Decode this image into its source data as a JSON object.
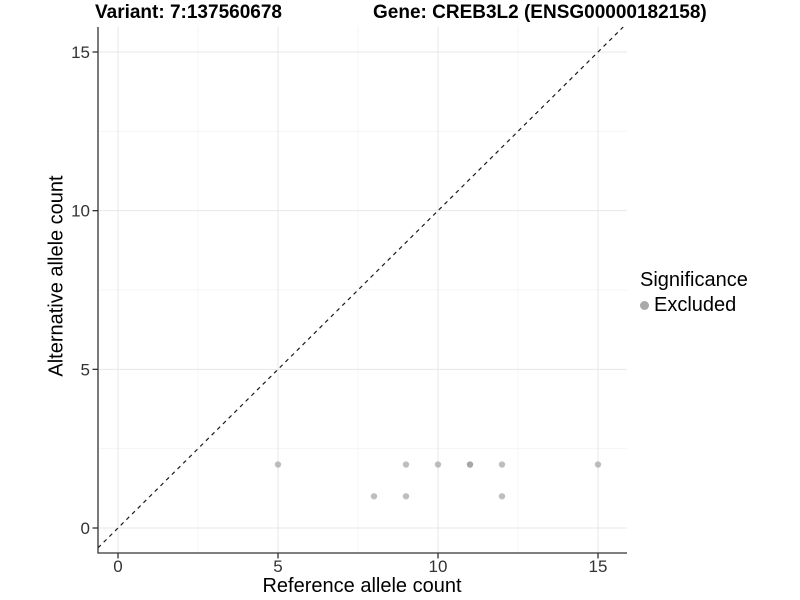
{
  "titles": {
    "variant": "Variant: 7:137560678",
    "gene": "Gene: CREB3L2 (ENSG00000182158)"
  },
  "chart_data": {
    "type": "scatter",
    "title": "Variant: 7:137560678  Gene: CREB3L2 (ENSG00000182158)",
    "xlabel": "Reference allele count",
    "ylabel": "Alternative allele count",
    "xlim": [
      -0.65,
      15.9
    ],
    "ylim": [
      -0.8,
      15.8
    ],
    "xticks": [
      0,
      5,
      10,
      15
    ],
    "yticks": [
      0,
      5,
      10,
      15
    ],
    "minor_gridlines_x": [
      2.5,
      7.5,
      12.5
    ],
    "minor_gridlines_y": [
      2.5,
      7.5,
      12.5
    ],
    "grid": "major+minor",
    "identity_line": {
      "style": "dashed",
      "slope": 1,
      "intercept": 0,
      "color": "#1a1a1a"
    },
    "legend": {
      "title": "Significance",
      "position": "right",
      "entries": [
        {
          "label": "Excluded",
          "marker_color": "#a9a9a9"
        }
      ]
    },
    "series": [
      {
        "name": "Excluded",
        "marker_color": "#9b9b9b",
        "marker_opacity": 0.65,
        "points": [
          [
            5,
            2
          ],
          [
            8,
            1
          ],
          [
            9,
            1
          ],
          [
            9,
            2
          ],
          [
            10,
            2
          ],
          [
            11,
            2
          ],
          [
            11,
            2
          ],
          [
            12,
            1
          ],
          [
            12,
            2
          ],
          [
            15,
            2
          ]
        ]
      }
    ],
    "colors": {
      "major_grid": "#e7e7e7",
      "minor_grid": "#f4f4f4",
      "axis_line": "#333333",
      "tick_label": "#333333"
    }
  }
}
